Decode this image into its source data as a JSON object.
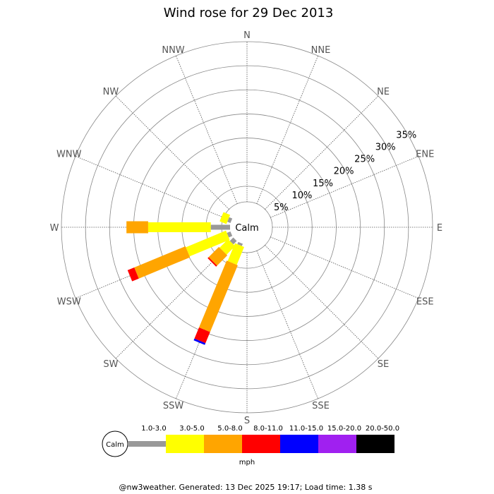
{
  "title": "Wind rose for 29 Dec 2013",
  "footer": "@nw3weather. Generated: 13 Dec 2025 19:17; Load time: 1.38 s",
  "calm_label": "Calm",
  "legend": {
    "calm_label": "Calm",
    "unit": "mph",
    "bins": [
      {
        "label": "1.0-3.0",
        "color": "#999999"
      },
      {
        "label": "3.0-5.0",
        "color": "#ffff00"
      },
      {
        "label": "5.0-8.0",
        "color": "#ffa500"
      },
      {
        "label": "8.0-11.0",
        "color": "#ff0000"
      },
      {
        "label": "11.0-15.0",
        "color": "#0000ff"
      },
      {
        "label": "15.0-20.0",
        "color": "#a020f0"
      },
      {
        "label": "20.0-50.0",
        "color": "#000000"
      }
    ]
  },
  "chart_data": {
    "type": "wind-rose",
    "title": "Wind rose for 29 Dec 2013",
    "unit": "mph",
    "directions": [
      "N",
      "NNE",
      "NE",
      "ENE",
      "E",
      "ESE",
      "SE",
      "SSE",
      "S",
      "SSW",
      "SW",
      "WSW",
      "W",
      "WNW",
      "NW",
      "NNW"
    ],
    "ring_labels": [
      "5%",
      "10%",
      "15%",
      "20%",
      "25%",
      "30%",
      "35%"
    ],
    "ring_values": [
      5,
      10,
      15,
      20,
      25,
      30,
      35
    ],
    "rmax": 35,
    "calm_ring_value": 2.7,
    "speed_bins": [
      "1.0-3.0",
      "3.0-5.0",
      "5.0-8.0",
      "8.0-11.0",
      "11.0-15.0",
      "15.0-20.0",
      "20.0-50.0"
    ],
    "bin_colors": [
      "#999999",
      "#ffff00",
      "#ffa500",
      "#ff0000",
      "#0000ff",
      "#a020f0",
      "#000000"
    ],
    "series": [
      {
        "direction": "SSW",
        "values": [
          0.5,
          4.0,
          15.0,
          2.5,
          0.4,
          0,
          0
        ]
      },
      {
        "direction": "SW",
        "values": [
          1.0,
          2.5,
          3.0,
          0.3,
          0,
          0,
          0
        ]
      },
      {
        "direction": "WSW",
        "values": [
          0.8,
          9.0,
          11.5,
          1.5,
          0,
          0,
          0
        ]
      },
      {
        "direction": "W",
        "values": [
          4.0,
          13.0,
          4.5,
          0,
          0,
          0,
          0
        ]
      },
      {
        "direction": "WNW",
        "values": [
          0.7,
          1.5,
          0,
          0,
          0,
          0,
          0
        ]
      }
    ]
  }
}
